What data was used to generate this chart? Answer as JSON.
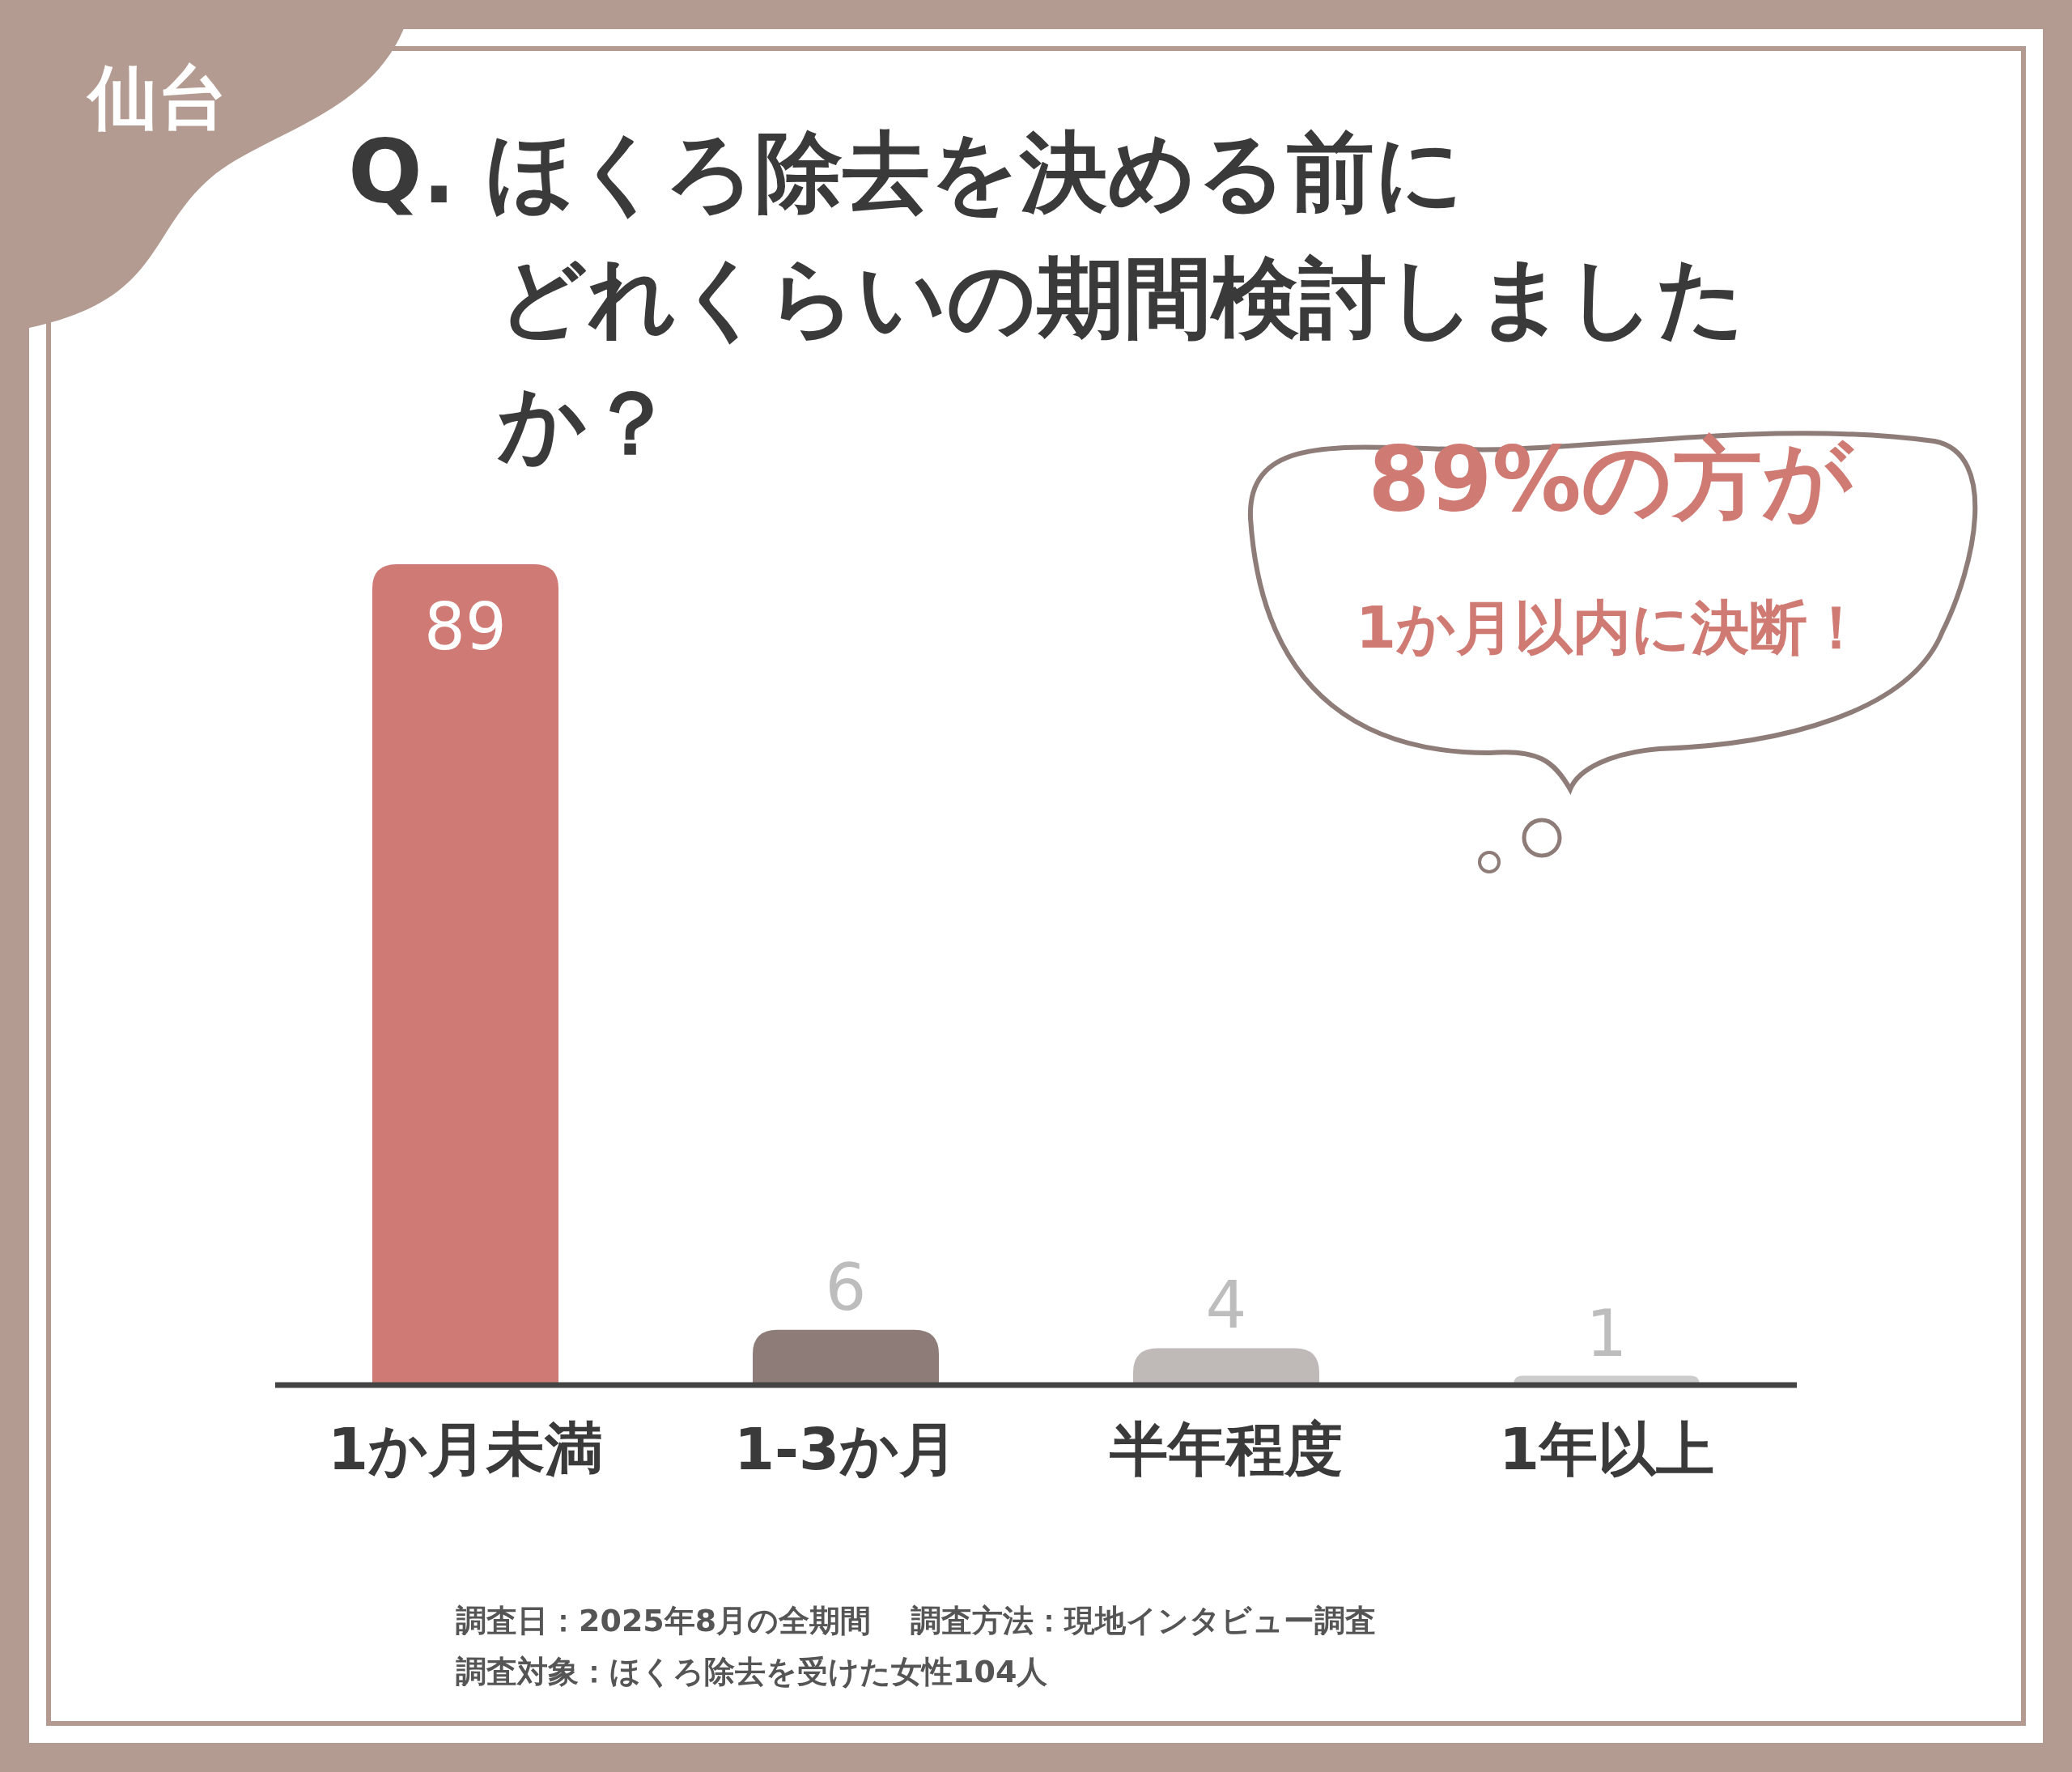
{
  "chart_data": {
    "type": "bar",
    "title": "Q. ほくろ除去を決める前にどれくらいの期間検討しましたか？",
    "categories": [
      "1か月未満",
      "1-3か月",
      "半年程度",
      "1年以上"
    ],
    "values": [
      89,
      6,
      4,
      1
    ],
    "colors": [
      "#cf7a74",
      "#8e7c79",
      "#bfb9b8",
      "#cccccc"
    ],
    "data_labels": true,
    "annotations": [
      "仙台",
      "89%の方が1か月以内に決断！",
      "調査日：2025年8月の全期間",
      "調査方法：現地インタビュー調査",
      "調査対象：ほくろ除去を受けた女性104人"
    ]
  }
}
